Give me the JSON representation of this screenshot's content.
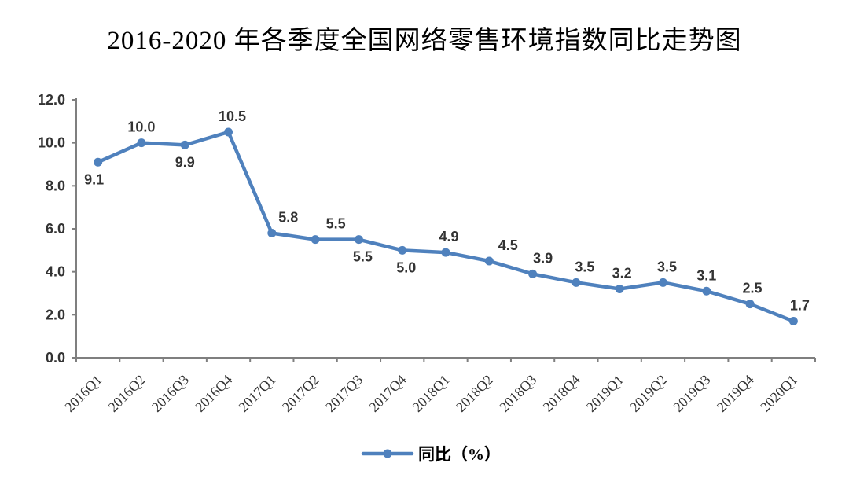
{
  "chart_data": {
    "type": "line",
    "title": "2016-2020 年各季度全国网络零售环境指数同比走势图",
    "legend": "同比（%）",
    "legend_position": "bottom-center",
    "categories": [
      "2016Q1",
      "2016Q2",
      "2016Q3",
      "2016Q4",
      "2017Q1",
      "2017Q2",
      "2017Q3",
      "2017Q4",
      "2018Q1",
      "2018Q2",
      "2018Q3",
      "2018Q4",
      "2019Q1",
      "2019Q2",
      "2019Q3",
      "2019Q4",
      "2020Q1"
    ],
    "values": [
      9.1,
      10.0,
      9.9,
      10.5,
      5.8,
      5.5,
      5.5,
      5.0,
      4.9,
      4.5,
      3.9,
      3.5,
      3.2,
      3.5,
      3.1,
      2.5,
      1.7
    ],
    "label_positions": [
      "below",
      "above",
      "below",
      "above",
      "above",
      "above",
      "below",
      "below",
      "above",
      "above",
      "above",
      "above",
      "above",
      "above",
      "above",
      "above",
      "above"
    ],
    "y_tick_labels": [
      "0.0",
      "2.0",
      "4.0",
      "6.0",
      "8.0",
      "10.0",
      "12.0"
    ],
    "ylim": [
      0,
      12
    ],
    "xlabel": "",
    "ylabel": "",
    "grid": false,
    "line_color": "#4F81BD",
    "axis_color": "#7f7f7f",
    "label_color": "#333333"
  }
}
